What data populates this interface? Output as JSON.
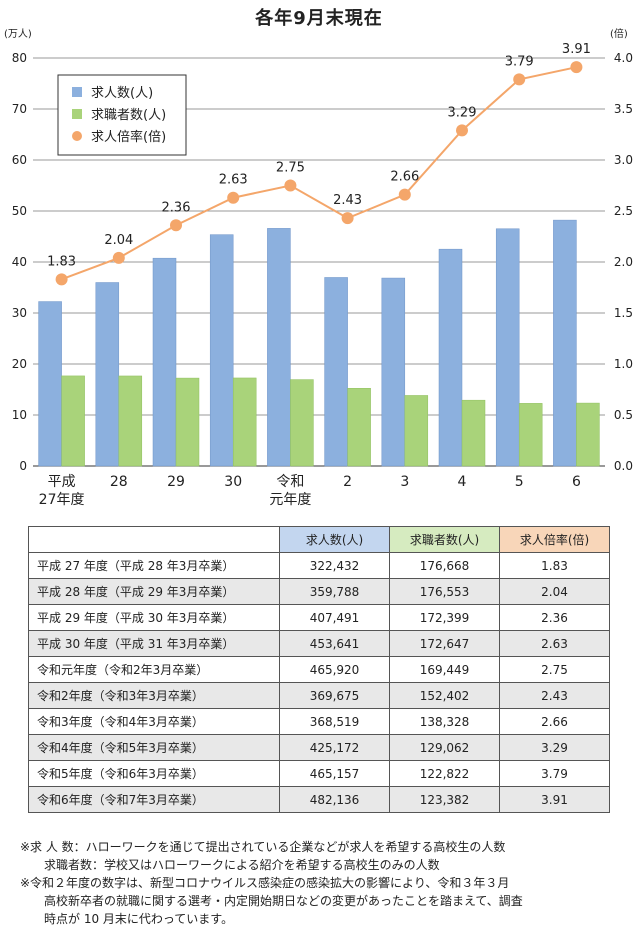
{
  "chart_data": {
    "type": "bar",
    "title": "各年9月末現在",
    "left_axis_unit": "(万人)",
    "right_axis_unit": "(倍)",
    "categories": [
      [
        "平成",
        "27年度"
      ],
      [
        "28"
      ],
      [
        "29"
      ],
      [
        "30"
      ],
      [
        "令和",
        "元年度"
      ],
      [
        "2"
      ],
      [
        "3"
      ],
      [
        "4"
      ],
      [
        "5"
      ],
      [
        "6"
      ]
    ],
    "left_ylim": [
      0,
      80
    ],
    "left_yticks": [
      "0",
      "10",
      "20",
      "30",
      "40",
      "50",
      "60",
      "70",
      "80"
    ],
    "right_ylim": [
      0,
      4
    ],
    "right_yticks": [
      "0.0",
      "0.5",
      "1.0",
      "1.5",
      "2.0",
      "2.5",
      "3.0",
      "3.5",
      "4.0"
    ],
    "series": [
      {
        "name": "求人数(人)",
        "type": "bar",
        "axis": "left",
        "color": "#8cb0de",
        "values": [
          32.2432,
          35.9788,
          40.7491,
          45.3641,
          46.592,
          36.9675,
          36.8519,
          42.5172,
          46.5157,
          48.2136
        ]
      },
      {
        "name": "求職者数(人)",
        "type": "bar",
        "axis": "left",
        "color": "#a9d37a",
        "values": [
          17.6668,
          17.6553,
          17.2399,
          17.2647,
          16.9449,
          15.2402,
          13.8328,
          12.9062,
          12.2822,
          12.3382
        ]
      },
      {
        "name": "求人倍率(倍)",
        "type": "line",
        "axis": "right",
        "color": "#f4a66a",
        "values": [
          1.83,
          2.04,
          2.36,
          2.63,
          2.75,
          2.43,
          2.66,
          3.29,
          3.79,
          3.91
        ],
        "labels": [
          "1.83",
          "2.04",
          "2.36",
          "2.63",
          "2.75",
          "2.43",
          "2.66",
          "3.29",
          "3.79",
          "3.91"
        ]
      }
    ],
    "legend_position": "top-left",
    "grid": "horizontal"
  },
  "table": {
    "headers": [
      "求人数(人)",
      "求職者数(人)",
      "求人倍率(倍)"
    ],
    "rows": [
      {
        "label": "平成 27 年度（平成 28 年3月卒業）",
        "jobs": "322,432",
        "seekers": "176,668",
        "ratio": "1.83"
      },
      {
        "label": "平成 28 年度（平成 29 年3月卒業）",
        "jobs": "359,788",
        "seekers": "176,553",
        "ratio": "2.04"
      },
      {
        "label": "平成 29 年度（平成 30 年3月卒業）",
        "jobs": "407,491",
        "seekers": "172,399",
        "ratio": "2.36"
      },
      {
        "label": "平成 30 年度（平成 31 年3月卒業）",
        "jobs": "453,641",
        "seekers": "172,647",
        "ratio": "2.63"
      },
      {
        "label": "令和元年度（令和2年3月卒業）",
        "jobs": "465,920",
        "seekers": "169,449",
        "ratio": "2.75"
      },
      {
        "label": "令和2年度（令和3年3月卒業）",
        "jobs": "369,675",
        "seekers": "152,402",
        "ratio": "2.43"
      },
      {
        "label": "令和3年度（令和4年3月卒業）",
        "jobs": "368,519",
        "seekers": "138,328",
        "ratio": "2.66"
      },
      {
        "label": "令和4年度（令和5年3月卒業）",
        "jobs": "425,172",
        "seekers": "129,062",
        "ratio": "3.29"
      },
      {
        "label": "令和5年度（令和6年3月卒業）",
        "jobs": "465,157",
        "seekers": "122,822",
        "ratio": "3.79"
      },
      {
        "label": "令和6年度（令和7年3月卒業）",
        "jobs": "482,136",
        "seekers": "123,382",
        "ratio": "3.91"
      }
    ]
  },
  "notes": {
    "line1": "※求 人 数：ハローワークを通じて提出されている企業などが求人を希望する高校生の人数",
    "line2": "求職者数：学校又はハローワークによる紹介を希望する高校生のみの人数",
    "line3": "※令和２年度の数字は、新型コロナウイルス感染症の感染拡大の影響により、令和３年３月",
    "line4": "高校新卒者の就職に関する選考・内定開始期日などの変更があったことを踏まえて、調査",
    "line5": "時点が 10 月末に代わっています。"
  }
}
